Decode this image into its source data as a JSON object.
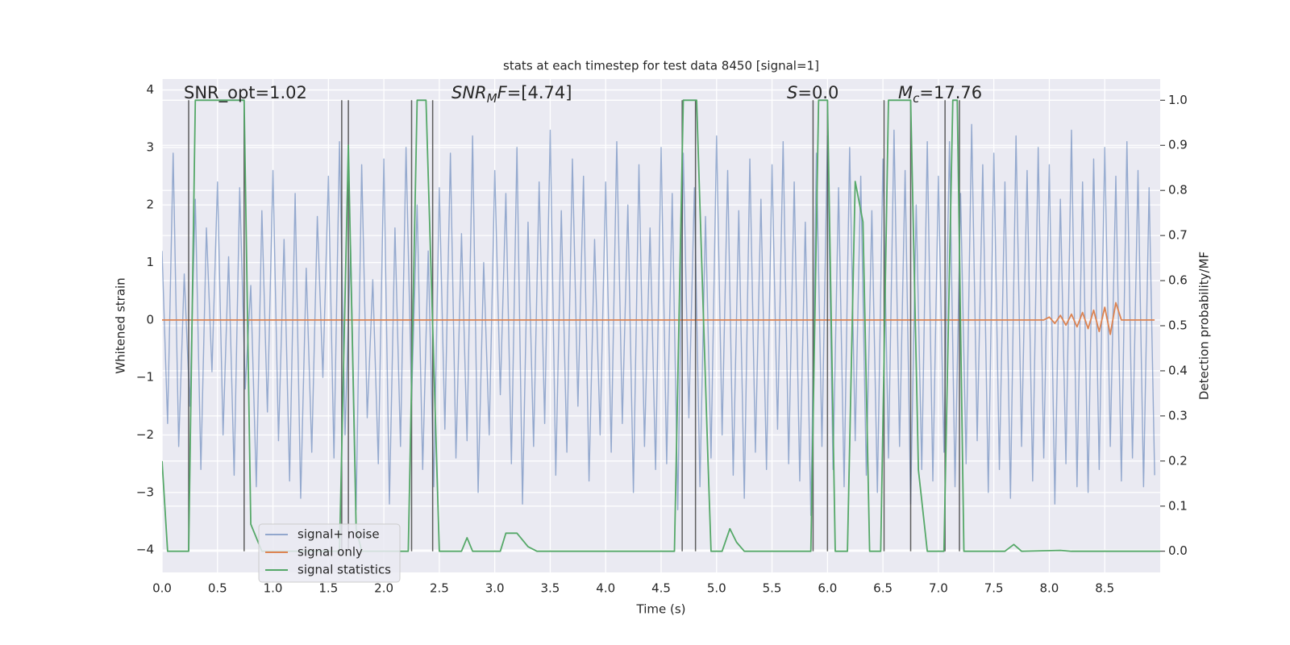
{
  "chart_data": {
    "type": "line",
    "title": "stats at each timestep for test data 8450 [signal=1]",
    "xlabel": "Time (s)",
    "ylabel": "Whitened strain",
    "y2label": "Detection probability/MF",
    "xlim": [
      0,
      9
    ],
    "ylim": [
      -4.39,
      4.19
    ],
    "y2lim": [
      -0.047,
      1.047
    ],
    "grid": true,
    "legend": "lower left",
    "xticks": [
      {
        "value": 0,
        "label": "0.0"
      },
      {
        "value": 0.5,
        "label": "0.5"
      },
      {
        "value": 1,
        "label": "1.0"
      },
      {
        "value": 1.5,
        "label": "1.5"
      },
      {
        "value": 2,
        "label": "2.0"
      },
      {
        "value": 2.5,
        "label": "2.5"
      },
      {
        "value": 3,
        "label": "3.0"
      },
      {
        "value": 3.5,
        "label": "3.5"
      },
      {
        "value": 4,
        "label": "4.0"
      },
      {
        "value": 4.5,
        "label": "4.5"
      },
      {
        "value": 5,
        "label": "5.0"
      },
      {
        "value": 5.5,
        "label": "5.5"
      },
      {
        "value": 6,
        "label": "6.0"
      },
      {
        "value": 6.5,
        "label": "6.5"
      },
      {
        "value": 7,
        "label": "7.0"
      },
      {
        "value": 7.5,
        "label": "7.5"
      },
      {
        "value": 8,
        "label": "8.0"
      },
      {
        "value": 8.5,
        "label": "8.5"
      }
    ],
    "yticks": [
      {
        "value": -4,
        "label": "−4"
      },
      {
        "value": -3,
        "label": "−3"
      },
      {
        "value": -2,
        "label": "−2"
      },
      {
        "value": -1,
        "label": "−1"
      },
      0,
      1,
      2,
      3,
      4
    ],
    "y2ticks": [
      {
        "value": 0,
        "label": "0.0"
      },
      {
        "value": 0.1,
        "label": "0.1"
      },
      {
        "value": 0.2,
        "label": "0.2"
      },
      {
        "value": 0.3,
        "label": "0.3"
      },
      {
        "value": 0.4,
        "label": "0.4"
      },
      {
        "value": 0.5,
        "label": "0.5"
      },
      {
        "value": 0.6,
        "label": "0.6"
      },
      {
        "value": 0.7,
        "label": "0.7"
      },
      {
        "value": 0.8,
        "label": "0.8"
      },
      {
        "value": 0.9,
        "label": "0.9"
      },
      {
        "value": 1,
        "label": "1.0"
      }
    ],
    "x": [
      0,
      0.05,
      0.1,
      0.15,
      0.2,
      0.25,
      0.3,
      0.35,
      0.4,
      0.45,
      0.5,
      0.55,
      0.6,
      0.65,
      0.7,
      0.75,
      0.8,
      0.85,
      0.9,
      0.95,
      1,
      1.05,
      1.1,
      1.15,
      1.2,
      1.25,
      1.3,
      1.35,
      1.4,
      1.45,
      1.5,
      1.55,
      1.6,
      1.65,
      1.7,
      1.75,
      1.8,
      1.85,
      1.9,
      1.95,
      2,
      2.05,
      2.1,
      2.15,
      2.2,
      2.25,
      2.3,
      2.35,
      2.4,
      2.45,
      2.5,
      2.55,
      2.6,
      2.65,
      2.7,
      2.75,
      2.8,
      2.85,
      2.9,
      2.95,
      3,
      3.05,
      3.1,
      3.15,
      3.2,
      3.25,
      3.3,
      3.35,
      3.4,
      3.45,
      3.5,
      3.55,
      3.6,
      3.65,
      3.7,
      3.75,
      3.8,
      3.85,
      3.9,
      3.95,
      4,
      4.05,
      4.1,
      4.15,
      4.2,
      4.25,
      4.3,
      4.35,
      4.4,
      4.45,
      4.5,
      4.55,
      4.6,
      4.65,
      4.7,
      4.75,
      4.8,
      4.85,
      4.9,
      4.95,
      5,
      5.05,
      5.1,
      5.15,
      5.2,
      5.25,
      5.3,
      5.35,
      5.4,
      5.45,
      5.5,
      5.55,
      5.6,
      5.65,
      5.7,
      5.75,
      5.8,
      5.85,
      5.9,
      5.95,
      6,
      6.05,
      6.1,
      6.15,
      6.2,
      6.25,
      6.3,
      6.35,
      6.4,
      6.45,
      6.5,
      6.55,
      6.6,
      6.65,
      6.7,
      6.75,
      6.8,
      6.85,
      6.9,
      6.95,
      7,
      7.05,
      7.1,
      7.15,
      7.2,
      7.25,
      7.3,
      7.35,
      7.4,
      7.45,
      7.5,
      7.55,
      7.6,
      7.65,
      7.7,
      7.75,
      7.8,
      7.85,
      7.9,
      7.95,
      8,
      8.05,
      8.1,
      8.15,
      8.2,
      8.25,
      8.3,
      8.35,
      8.4,
      8.45,
      8.5,
      8.55,
      8.6,
      8.65,
      8.7,
      8.75,
      8.8,
      8.85,
      8.9,
      8.95
    ],
    "series": [
      {
        "name": "signal+ noise",
        "color": "#4c72b0",
        "values": [
          1.2,
          -1.8,
          2.9,
          -2.2,
          0.8,
          -1.5,
          2.1,
          -2.6,
          1.6,
          -0.9,
          2.4,
          -2.0,
          1.1,
          -2.7,
          2.3,
          -1.2,
          0.6,
          -2.9,
          1.9,
          -1.6,
          2.6,
          -2.1,
          1.4,
          -2.8,
          2.2,
          -3.1,
          0.9,
          -2.3,
          1.8,
          -1.0,
          2.5,
          -2.4,
          3.1,
          -2.0,
          1.3,
          -3.3,
          2.7,
          -1.7,
          0.7,
          -2.5,
          2.8,
          -3.2,
          1.6,
          -2.2,
          3.0,
          -1.4,
          2.0,
          -2.6,
          1.2,
          -2.9,
          2.3,
          -1.9,
          2.9,
          -2.4,
          1.5,
          -2.1,
          3.2,
          -3.0,
          1.0,
          -2.0,
          2.6,
          -1.3,
          2.2,
          -2.5,
          3.0,
          -3.2,
          1.7,
          -2.2,
          2.4,
          -1.8,
          3.3,
          -2.7,
          1.9,
          -2.3,
          2.8,
          -1.5,
          2.5,
          -2.8,
          1.4,
          -2.0,
          2.4,
          -2.3,
          3.1,
          -1.8,
          2.0,
          -3.0,
          2.7,
          -2.2,
          1.6,
          -2.6,
          3.0,
          -2.5,
          2.2,
          -3.3,
          2.9,
          -1.7,
          2.3,
          -2.9,
          1.8,
          -2.4,
          3.2,
          -2.0,
          2.6,
          -2.7,
          1.9,
          -3.1,
          2.8,
          -2.3,
          2.1,
          -2.6,
          2.7,
          -1.9,
          3.1,
          -2.5,
          2.4,
          -2.8,
          1.7,
          -3.4,
          2.9,
          -2.2,
          3.2,
          -2.6,
          2.3,
          -2.9,
          3.0,
          -2.1,
          2.5,
          -2.7,
          1.9,
          -3.0,
          2.8,
          -2.4,
          3.3,
          -2.2,
          2.6,
          -3.2,
          2.0,
          -2.6,
          3.1,
          -2.8,
          2.5,
          -2.3,
          3.1,
          -2.9,
          2.2,
          -2.5,
          3.4,
          -2.1,
          2.7,
          -3.0,
          2.9,
          -2.6,
          2.4,
          -3.1,
          3.2,
          -2.2,
          2.6,
          -2.8,
          3.0,
          -2.4,
          2.7,
          -3.2,
          2.1,
          -2.5,
          3.3,
          -2.9,
          2.4,
          -3.0,
          2.8,
          -2.6,
          3.0,
          -2.2,
          2.5,
          -2.8,
          3.1,
          -2.4,
          2.6,
          -2.9,
          2.3,
          -2.7
        ]
      },
      {
        "name": "signal only",
        "color": "#dd8452",
        "values": [
          0,
          0,
          0,
          0,
          0,
          0,
          0,
          0,
          0,
          0,
          0,
          0,
          0,
          0,
          0,
          0,
          0,
          0,
          0,
          0,
          0,
          0,
          0,
          0,
          0,
          0,
          0,
          0,
          0,
          0,
          0,
          0,
          0,
          0,
          0,
          0,
          0,
          0,
          0,
          0,
          0,
          0,
          0,
          0,
          0,
          0,
          0,
          0,
          0,
          0,
          0,
          0,
          0,
          0,
          0,
          0,
          0,
          0,
          0,
          0,
          0,
          0,
          0,
          0,
          0,
          0,
          0,
          0,
          0,
          0,
          0,
          0,
          0,
          0,
          0,
          0,
          0,
          0,
          0,
          0,
          0,
          0,
          0,
          0,
          0,
          0,
          0,
          0,
          0,
          0,
          0,
          0,
          0,
          0,
          0,
          0,
          0,
          0,
          0,
          0,
          0,
          0,
          0,
          0,
          0,
          0,
          0,
          0,
          0,
          0,
          0,
          0,
          0,
          0,
          0,
          0,
          0,
          0,
          0,
          0,
          0,
          0,
          0,
          0,
          0,
          0,
          0,
          0,
          0,
          0,
          0,
          0,
          0,
          0,
          0,
          0,
          0,
          0,
          0,
          0,
          0,
          0,
          0,
          0,
          0,
          0,
          0,
          0,
          0,
          0,
          0,
          0,
          0,
          0,
          0,
          0,
          0,
          0,
          0,
          0,
          0.05,
          -0.06,
          0.08,
          -0.09,
          0.1,
          -0.12,
          0.13,
          -0.15,
          0.17,
          -0.2,
          0.22,
          -0.25,
          0.3,
          0,
          0,
          0,
          0,
          0,
          0,
          0
        ]
      },
      {
        "name": "signal statistics",
        "color": "#55a868",
        "axis": "y2",
        "x": [
          0,
          0.05,
          0.24,
          0.3,
          0.74,
          0.8,
          0.9,
          1.6,
          1.68,
          1.75,
          1.8,
          2.22,
          2.3,
          2.38,
          2.5,
          2.55,
          2.7,
          2.75,
          2.8,
          3.05,
          3.1,
          3.2,
          3.3,
          3.38,
          4.62,
          4.7,
          4.75,
          4.82,
          4.92,
          4.95,
          5.05,
          5.12,
          5.18,
          5.25,
          5.85,
          5.92,
          6.0,
          6.07,
          6.18,
          6.25,
          6.32,
          6.38,
          6.48,
          6.55,
          6.75,
          6.82,
          6.9,
          7.05,
          7.13,
          7.17,
          7.23,
          7.6,
          7.68,
          7.75,
          8.1,
          8.2,
          9.0
        ],
        "values": [
          0.2,
          0,
          0,
          1.0,
          1.0,
          0.06,
          0,
          0,
          0.9,
          0.05,
          0,
          0,
          1.0,
          1.0,
          0,
          0,
          0,
          0.03,
          0,
          0,
          0.04,
          0.04,
          0.01,
          0,
          0,
          1.0,
          1.0,
          1.0,
          0.22,
          0,
          0,
          0.05,
          0.02,
          0,
          0,
          1.0,
          1.0,
          0,
          0,
          0.82,
          0.73,
          0,
          0,
          1.0,
          1.0,
          0.18,
          0,
          0,
          1.0,
          1.0,
          0,
          0,
          0.015,
          0,
          0.002,
          0,
          0
        ]
      }
    ],
    "vlines": {
      "color": "#444444",
      "axis": "y2",
      "ymin": 0,
      "ymax": 1,
      "x": [
        0.24,
        0.74,
        1.62,
        1.68,
        2.25,
        2.44,
        4.69,
        4.81,
        5.87,
        6.0,
        6.51,
        6.75,
        7.06,
        7.19
      ]
    },
    "annotations": [
      {
        "parts": [
          {
            "text": "SNR_opt=1.02"
          }
        ]
      },
      {
        "parts": [
          {
            "text": "SNR",
            "italic": true
          },
          {
            "text": "M",
            "italic": true,
            "sub": true
          },
          {
            "text": "F",
            "italic": true
          },
          {
            "text": "=[4.74]"
          }
        ]
      },
      {
        "parts": [
          {
            "text": "S",
            "italic": true
          },
          {
            "text": "=0.0"
          }
        ]
      },
      {
        "parts": [
          {
            "text": "M",
            "italic": true
          },
          {
            "text": "c",
            "italic": true,
            "sub": true
          },
          {
            "text": "=17.76"
          }
        ]
      }
    ]
  }
}
